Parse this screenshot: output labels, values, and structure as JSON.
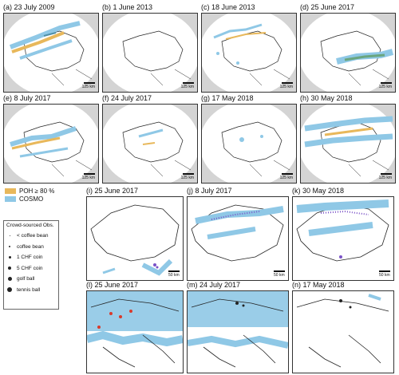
{
  "colors": {
    "poh": "#e8b85b",
    "cosmo": "#8fc8e6",
    "mask": "#d4d4d4",
    "crowd": "#222222",
    "crowd_top": "#7a52c7",
    "crowd_bottom": "#d93a2b"
  },
  "scale_labels": {
    "large": "125 km",
    "small": "50 km"
  },
  "panels_top": [
    {
      "id": "a",
      "title": "(a) 23 July 2009"
    },
    {
      "id": "b",
      "title": "(b) 1 June 2013"
    },
    {
      "id": "c",
      "title": "(c) 18 June 2013"
    },
    {
      "id": "d",
      "title": "(d) 25 June 2017"
    },
    {
      "id": "e",
      "title": "(e) 8 July 2017"
    },
    {
      "id": "f",
      "title": "(f) 24 July 2017"
    },
    {
      "id": "g",
      "title": "(g) 17 May 2018"
    },
    {
      "id": "h",
      "title": "(h) 30 May 2018"
    }
  ],
  "panels_bottom": [
    {
      "id": "i",
      "title": "(i) 25 June 2017"
    },
    {
      "id": "j",
      "title": "(j) 8 July 2017"
    },
    {
      "id": "k",
      "title": "(k) 30 May 2018"
    },
    {
      "id": "l",
      "title": "(l) 25 June 2017"
    },
    {
      "id": "m",
      "title": "(m) 24 July 2017"
    },
    {
      "id": "n",
      "title": "(n) 17 May 2018"
    }
  ],
  "legend_fields": [
    {
      "label": "POH ≥ 80 %",
      "color_key": "poh"
    },
    {
      "label": "COSMO",
      "color_key": "cosmo"
    }
  ],
  "legend_crowd": {
    "title": "Crowd-sourced Obs.",
    "items": [
      {
        "label": "< coffee bean",
        "size": 1
      },
      {
        "label": "coffee bean",
        "size": 2
      },
      {
        "label": "1 CHF coin",
        "size": 3
      },
      {
        "label": "5 CHF coin",
        "size": 4
      },
      {
        "label": "golf ball",
        "size": 5
      },
      {
        "label": "tennis ball",
        "size": 6
      }
    ]
  }
}
